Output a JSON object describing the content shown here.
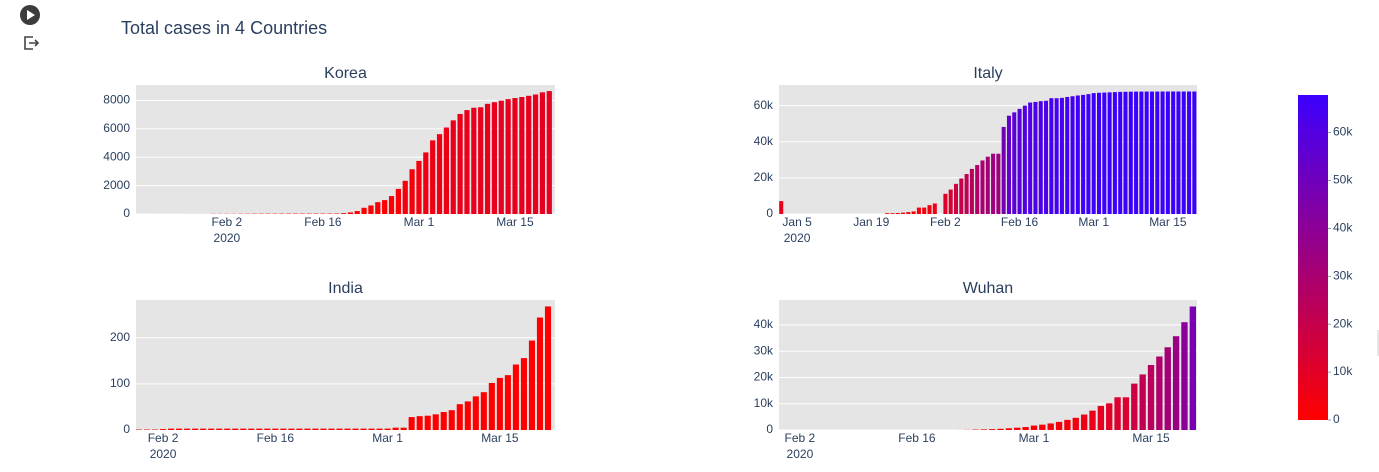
{
  "title": "Total cases in 4 Countries",
  "coloraxis": {
    "range": [
      0,
      67800
    ],
    "colorscale": [
      "#ff0000",
      "#3c00ff"
    ],
    "ticks": [
      0,
      {
        "value": 10000,
        "label": "10k"
      },
      {
        "value": 20000,
        "label": "20k"
      },
      {
        "value": 30000,
        "label": "30k"
      },
      {
        "value": 40000,
        "label": "40k"
      },
      {
        "value": 50000,
        "label": "50k"
      },
      {
        "value": 60000,
        "label": "60k"
      }
    ]
  },
  "chart_data": [
    {
      "type": "bar",
      "title": "Korea",
      "grid": true,
      "x": [
        "2020-01-22",
        "2020-01-23",
        "2020-01-24",
        "2020-01-25",
        "2020-01-26",
        "2020-01-27",
        "2020-01-28",
        "2020-01-29",
        "2020-01-30",
        "2020-01-31",
        "2020-02-01",
        "2020-02-02",
        "2020-02-03",
        "2020-02-04",
        "2020-02-05",
        "2020-02-06",
        "2020-02-07",
        "2020-02-08",
        "2020-02-09",
        "2020-02-10",
        "2020-02-11",
        "2020-02-12",
        "2020-02-13",
        "2020-02-14",
        "2020-02-15",
        "2020-02-16",
        "2020-02-17",
        "2020-02-18",
        "2020-02-19",
        "2020-02-20",
        "2020-02-21",
        "2020-02-22",
        "2020-02-23",
        "2020-02-24",
        "2020-02-25",
        "2020-02-26",
        "2020-02-27",
        "2020-02-28",
        "2020-02-29",
        "2020-03-01",
        "2020-03-02",
        "2020-03-03",
        "2020-03-04",
        "2020-03-05",
        "2020-03-06",
        "2020-03-07",
        "2020-03-08",
        "2020-03-09",
        "2020-03-10",
        "2020-03-11",
        "2020-03-12",
        "2020-03-13",
        "2020-03-14",
        "2020-03-15",
        "2020-03-16",
        "2020-03-17",
        "2020-03-18",
        "2020-03-19",
        "2020-03-20"
      ],
      "values": [
        1,
        1,
        2,
        2,
        3,
        4,
        4,
        4,
        4,
        11,
        12,
        15,
        15,
        16,
        19,
        23,
        24,
        24,
        25,
        27,
        28,
        28,
        28,
        28,
        28,
        29,
        30,
        31,
        58,
        111,
        209,
        436,
        602,
        833,
        977,
        1261,
        1766,
        2337,
        3150,
        3736,
        4335,
        5186,
        5621,
        6088,
        6593,
        7041,
        7314,
        7478,
        7513,
        7755,
        7869,
        7979,
        8086,
        8162,
        8236,
        8320,
        8413,
        8565,
        8652
      ],
      "xlim": [
        "2020-01-19T18:00",
        "2020-03-20T20:00"
      ],
      "xticks": [
        {
          "value": "2020-02-02",
          "label": [
            "Feb 2",
            "2020"
          ]
        },
        {
          "value": "2020-02-16",
          "label": "Feb 16"
        },
        {
          "value": "2020-03-01",
          "label": "Mar 1"
        },
        {
          "value": "2020-03-15",
          "label": "Mar 15"
        }
      ],
      "ylim": [
        0,
        9080
      ],
      "yticks": [
        0,
        2000,
        4000,
        6000,
        8000
      ]
    },
    {
      "type": "bar",
      "title": "Italy",
      "grid": true,
      "x": [
        "2020-01-02",
        "2020-01-22",
        "2020-01-23",
        "2020-01-24",
        "2020-01-25",
        "2020-01-26",
        "2020-01-27",
        "2020-01-28",
        "2020-01-29",
        "2020-01-30",
        "2020-01-31",
        "2020-02-02",
        "2020-02-03",
        "2020-02-04",
        "2020-02-05",
        "2020-02-06",
        "2020-02-07",
        "2020-02-08",
        "2020-02-09",
        "2020-02-10",
        "2020-02-11",
        "2020-02-12",
        "2020-02-13",
        "2020-02-14",
        "2020-02-15",
        "2020-02-16",
        "2020-02-17",
        "2020-02-18",
        "2020-02-19",
        "2020-02-20",
        "2020-02-21",
        "2020-02-22",
        "2020-02-23",
        "2020-02-24",
        "2020-02-25",
        "2020-02-26",
        "2020-02-27",
        "2020-02-28",
        "2020-02-29",
        "2020-03-01",
        "2020-03-02",
        "2020-03-03",
        "2020-03-04",
        "2020-03-05",
        "2020-03-06",
        "2020-03-07",
        "2020-03-08",
        "2020-03-09",
        "2020-03-10",
        "2020-03-11",
        "2020-03-12",
        "2020-03-13",
        "2020-03-14",
        "2020-03-15",
        "2020-03-16",
        "2020-03-17",
        "2020-03-18",
        "2020-03-19",
        "2020-03-20"
      ],
      "values": [
        7153,
        444,
        444,
        549,
        761,
        1058,
        1423,
        3554,
        3554,
        4903,
        5806,
        11177,
        13522,
        16678,
        19665,
        22112,
        24953,
        27100,
        29631,
        31728,
        33366,
        33366,
        48206,
        54406,
        56249,
        58182,
        59989,
        61682,
        62031,
        62442,
        62662,
        64084,
        64084,
        64287,
        64786,
        65187,
        65596,
        65914,
        66337,
        66907,
        67103,
        67217,
        67332,
        67466,
        67592,
        67666,
        67707,
        67743,
        67760,
        67773,
        67781,
        67786,
        67790,
        67794,
        67798,
        67799,
        67800,
        67800,
        67800
      ],
      "xlim": [
        "2020-01-01T14:00",
        "2020-03-20T12:00"
      ],
      "xticks": [
        {
          "value": "2020-01-05",
          "label": [
            "Jan 5",
            "2020"
          ]
        },
        {
          "value": "2020-01-19",
          "label": "Jan 19"
        },
        {
          "value": "2020-02-02",
          "label": "Feb 2"
        },
        {
          "value": "2020-02-16",
          "label": "Feb 16"
        },
        {
          "value": "2020-03-01",
          "label": "Mar 1"
        },
        {
          "value": "2020-03-15",
          "label": "Mar 15"
        }
      ],
      "ylim": [
        0,
        71400
      ],
      "yticks": [
        0,
        {
          "value": 20000,
          "label": "20k"
        },
        {
          "value": 40000,
          "label": "40k"
        },
        {
          "value": 60000,
          "label": "60k"
        }
      ]
    },
    {
      "type": "bar",
      "title": "India",
      "grid": true,
      "x": [
        "2020-01-30",
        "2020-01-31",
        "2020-02-01",
        "2020-02-02",
        "2020-02-03",
        "2020-02-04",
        "2020-02-05",
        "2020-02-06",
        "2020-02-07",
        "2020-02-08",
        "2020-02-09",
        "2020-02-10",
        "2020-02-11",
        "2020-02-12",
        "2020-02-13",
        "2020-02-14",
        "2020-02-15",
        "2020-02-16",
        "2020-02-17",
        "2020-02-18",
        "2020-02-19",
        "2020-02-20",
        "2020-02-21",
        "2020-02-22",
        "2020-02-23",
        "2020-02-24",
        "2020-02-25",
        "2020-02-26",
        "2020-02-27",
        "2020-02-28",
        "2020-02-29",
        "2020-03-01",
        "2020-03-02",
        "2020-03-03",
        "2020-03-04",
        "2020-03-05",
        "2020-03-06",
        "2020-03-07",
        "2020-03-08",
        "2020-03-09",
        "2020-03-10",
        "2020-03-11",
        "2020-03-12",
        "2020-03-13",
        "2020-03-14",
        "2020-03-15",
        "2020-03-16",
        "2020-03-17",
        "2020-03-18",
        "2020-03-19",
        "2020-03-20",
        "2020-03-21"
      ],
      "values": [
        1,
        1,
        1,
        2,
        3,
        3,
        3,
        3,
        3,
        3,
        3,
        3,
        3,
        3,
        3,
        3,
        3,
        3,
        3,
        3,
        3,
        3,
        3,
        3,
        3,
        3,
        3,
        3,
        3,
        3,
        3,
        3,
        5,
        5,
        28,
        30,
        31,
        34,
        39,
        43,
        56,
        62,
        73,
        82,
        102,
        113,
        119,
        142,
        156,
        194,
        244,
        268
      ],
      "xlim": [
        "2020-01-29T15:00",
        "2020-03-21T21:00"
      ],
      "xticks": [
        {
          "value": "2020-02-02",
          "label": [
            "Feb 2",
            "2020"
          ]
        },
        {
          "value": "2020-02-16",
          "label": "Feb 16"
        },
        {
          "value": "2020-03-01",
          "label": "Mar 1"
        },
        {
          "value": "2020-03-15",
          "label": "Mar 15"
        }
      ],
      "ylim": [
        0,
        282
      ],
      "yticks": [
        0,
        100,
        200
      ]
    },
    {
      "type": "bar",
      "title": "Wuhan",
      "grid": true,
      "x": [
        "2020-01-31",
        "2020-02-01",
        "2020-02-02",
        "2020-02-03",
        "2020-02-04",
        "2020-02-05",
        "2020-02-06",
        "2020-02-07",
        "2020-02-08",
        "2020-02-09",
        "2020-02-10",
        "2020-02-11",
        "2020-02-12",
        "2020-02-13",
        "2020-02-14",
        "2020-02-15",
        "2020-02-16",
        "2020-02-17",
        "2020-02-18",
        "2020-02-19",
        "2020-02-20",
        "2020-02-21",
        "2020-02-22",
        "2020-02-23",
        "2020-02-24",
        "2020-02-25",
        "2020-02-26",
        "2020-02-27",
        "2020-02-28",
        "2020-02-29",
        "2020-03-01",
        "2020-03-02",
        "2020-03-03",
        "2020-03-04",
        "2020-03-05",
        "2020-03-06",
        "2020-03-07",
        "2020-03-08",
        "2020-03-09",
        "2020-03-10",
        "2020-03-11",
        "2020-03-12",
        "2020-03-13",
        "2020-03-14",
        "2020-03-15",
        "2020-03-16",
        "2020-03-17",
        "2020-03-18",
        "2020-03-19",
        "2020-03-20"
      ],
      "values": [
        2,
        2,
        2,
        2,
        2,
        2,
        2,
        3,
        3,
        3,
        3,
        3,
        3,
        3,
        3,
        3,
        3,
        3,
        3,
        3,
        3,
        20,
        62,
        155,
        229,
        322,
        453,
        655,
        888,
        1128,
        1694,
        2036,
        2502,
        3089,
        3858,
        4636,
        5883,
        7375,
        9172,
        10149,
        12462,
        12462,
        17660,
        21157,
        24747,
        27980,
        31506,
        35713,
        41035,
        47021
      ],
      "xlim": [
        "2020-01-30T12:00",
        "2020-03-20T12:00"
      ],
      "xticks": [
        {
          "value": "2020-02-02",
          "label": [
            "Feb 2",
            "2020"
          ]
        },
        {
          "value": "2020-02-16",
          "label": "Feb 16"
        },
        {
          "value": "2020-03-01",
          "label": "Mar 1"
        },
        {
          "value": "2020-03-15",
          "label": "Mar 15"
        }
      ],
      "ylim": [
        0,
        49500
      ],
      "yticks": [
        0,
        {
          "value": 10000,
          "label": "10k"
        },
        {
          "value": 20000,
          "label": "20k"
        },
        {
          "value": 30000,
          "label": "30k"
        },
        {
          "value": 40000,
          "label": "40k"
        }
      ]
    }
  ]
}
